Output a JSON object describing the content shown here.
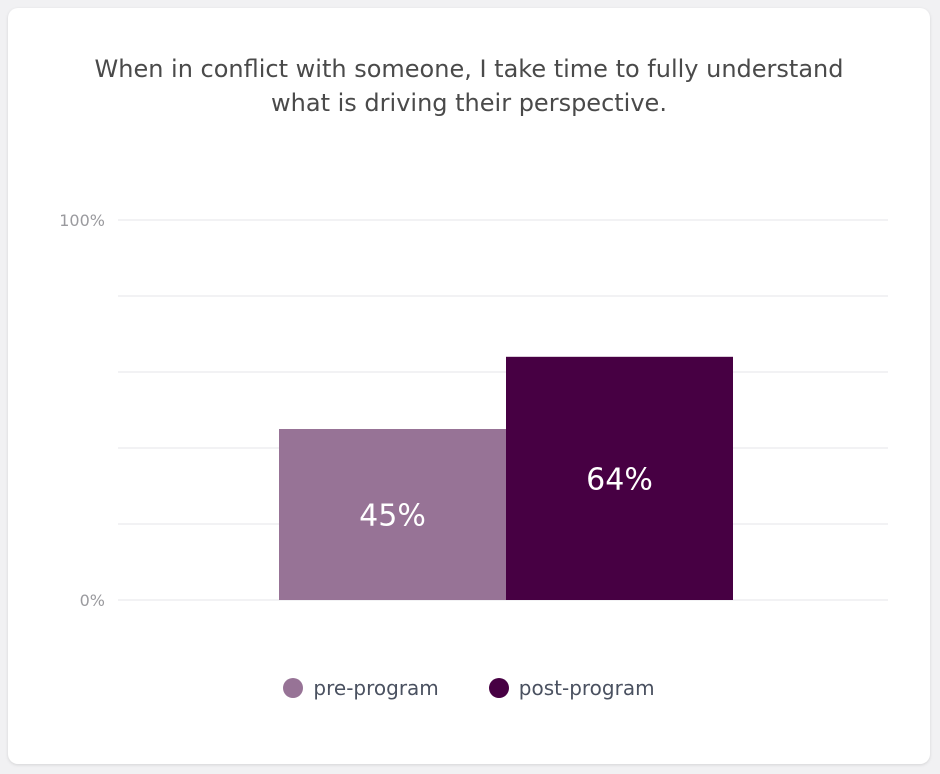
{
  "chart_data": {
    "type": "bar",
    "title_lines": [
      "When in conflict with someone, I take time to fully understand",
      "what is driving their perspective."
    ],
    "categories": [
      "pre-program",
      "post-program"
    ],
    "values": [
      45,
      64
    ],
    "value_labels": [
      "45%",
      "64%"
    ],
    "colors": [
      "#977396",
      "#470043"
    ],
    "ylim": [
      0,
      100
    ],
    "yticks": [
      0,
      20,
      40,
      60,
      80,
      100
    ],
    "ytick_labels": {
      "0": "0%",
      "100": "100%"
    },
    "grid": true,
    "legend_position": "bottom-center",
    "legend": [
      {
        "label": "pre-program",
        "color": "#977396"
      },
      {
        "label": "post-program",
        "color": "#470043"
      }
    ]
  }
}
